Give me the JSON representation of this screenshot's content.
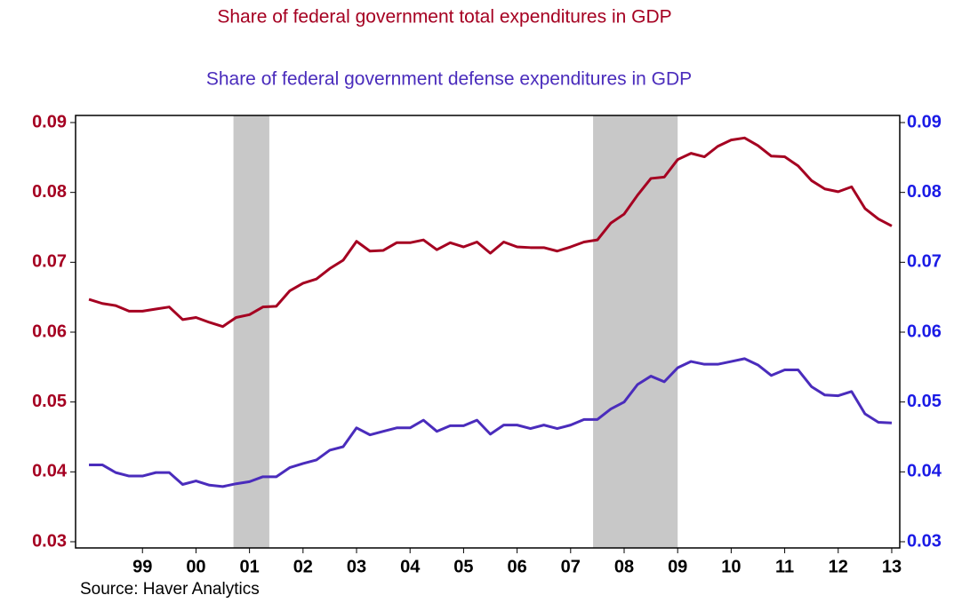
{
  "chart_data": {
    "type": "line",
    "titles": [
      "Share of federal government total expenditures in GDP",
      "Share of federal government defense expenditures in GDP"
    ],
    "source": "Source: Haver Analytics",
    "x": [
      1998.5,
      1998.75,
      1999,
      1999.25,
      1999.5,
      1999.75,
      2000,
      2000.25,
      2000.5,
      2000.75,
      2001,
      2001.25,
      2001.5,
      2001.75,
      2002,
      2002.25,
      2002.5,
      2002.75,
      2003,
      2003.25,
      2003.5,
      2003.75,
      2004,
      2004.25,
      2004.5,
      2004.75,
      2005,
      2005.25,
      2005.5,
      2005.75,
      2006,
      2006.25,
      2006.5,
      2006.75,
      2007,
      2007.25,
      2007.5,
      2007.75,
      2008,
      2008.25,
      2008.5,
      2008.75,
      2009,
      2009.25,
      2009.5,
      2009.75,
      2010,
      2010.25,
      2010.5,
      2010.75,
      2011,
      2011.25,
      2011.5,
      2011.75,
      2012,
      2012.25,
      2012.5,
      2012.75,
      2013,
      2013.25,
      2013.5
    ],
    "series": [
      {
        "name": "Share of federal government total expenditures in GDP",
        "color": "#a50021",
        "axis": "y",
        "values": [
          0.0647,
          0.0641,
          0.0638,
          0.063,
          0.063,
          0.0633,
          0.0636,
          0.0618,
          0.0621,
          0.0614,
          0.0608,
          0.0621,
          0.0625,
          0.0636,
          0.0637,
          0.0659,
          0.067,
          0.0676,
          0.0691,
          0.0703,
          0.073,
          0.0716,
          0.0717,
          0.0728,
          0.0728,
          0.0732,
          0.0718,
          0.0728,
          0.0722,
          0.0729,
          0.0713,
          0.0729,
          0.0722,
          0.0721,
          0.0721,
          0.0716,
          0.0722,
          0.0729,
          0.0732,
          0.0756,
          0.0769,
          0.0796,
          0.082,
          0.0822,
          0.0847,
          0.0856,
          0.0851,
          0.0866,
          0.0875,
          0.0878,
          0.0867,
          0.0852,
          0.0851,
          0.0838,
          0.0817,
          0.0805,
          0.0801,
          0.0808,
          0.0777,
          0.0762,
          0.0752
        ]
      },
      {
        "name": "Share of federal government defense expenditures in GDP",
        "color": "#4a2cbc",
        "axis": "y2",
        "values": [
          0.041,
          0.041,
          0.0399,
          0.0394,
          0.0394,
          0.0399,
          0.0399,
          0.0382,
          0.0387,
          0.0381,
          0.0379,
          0.0383,
          0.0386,
          0.0393,
          0.0393,
          0.0406,
          0.0412,
          0.0417,
          0.0431,
          0.0436,
          0.0463,
          0.0453,
          0.0458,
          0.0463,
          0.0463,
          0.0474,
          0.0458,
          0.0466,
          0.0466,
          0.0474,
          0.0454,
          0.0467,
          0.0467,
          0.0462,
          0.0467,
          0.0462,
          0.0467,
          0.0475,
          0.0475,
          0.049,
          0.05,
          0.0525,
          0.0537,
          0.0529,
          0.0549,
          0.0558,
          0.0554,
          0.0554,
          0.0558,
          0.0562,
          0.0553,
          0.0538,
          0.0546,
          0.0546,
          0.0522,
          0.051,
          0.0509,
          0.0515,
          0.0483,
          0.0471,
          0.047
        ]
      }
    ],
    "recessions": [
      [
        2001.2,
        2001.87
      ],
      [
        2007.92,
        2009.5
      ]
    ],
    "recession_color": "#c8c8c8",
    "xlim": [
      1998.25,
      2013.65
    ],
    "xticks": [
      {
        "value": 1999.5,
        "label": "99"
      },
      {
        "value": 2000.5,
        "label": "00"
      },
      {
        "value": 2001.5,
        "label": "01"
      },
      {
        "value": 2002.5,
        "label": "02"
      },
      {
        "value": 2003.5,
        "label": "03"
      },
      {
        "value": 2004.5,
        "label": "04"
      },
      {
        "value": 2005.5,
        "label": "05"
      },
      {
        "value": 2006.5,
        "label": "06"
      },
      {
        "value": 2007.5,
        "label": "07"
      },
      {
        "value": 2008.5,
        "label": "08"
      },
      {
        "value": 2009.5,
        "label": "09"
      },
      {
        "value": 2010.5,
        "label": "10"
      },
      {
        "value": 2011.5,
        "label": "11"
      },
      {
        "value": 2012.5,
        "label": "12"
      },
      {
        "value": 2013.5,
        "label": "13"
      }
    ],
    "ylim": [
      0.03,
      0.09
    ],
    "yticks": [
      0.03,
      0.04,
      0.05,
      0.06,
      0.07,
      0.08,
      0.09
    ],
    "ytick_color": "#a50021",
    "y2lim": [
      0.03,
      0.09
    ],
    "y2ticks": [
      0.03,
      0.04,
      0.05,
      0.06,
      0.07,
      0.08,
      0.09
    ],
    "y2tick_color": "#1a1ae6"
  }
}
